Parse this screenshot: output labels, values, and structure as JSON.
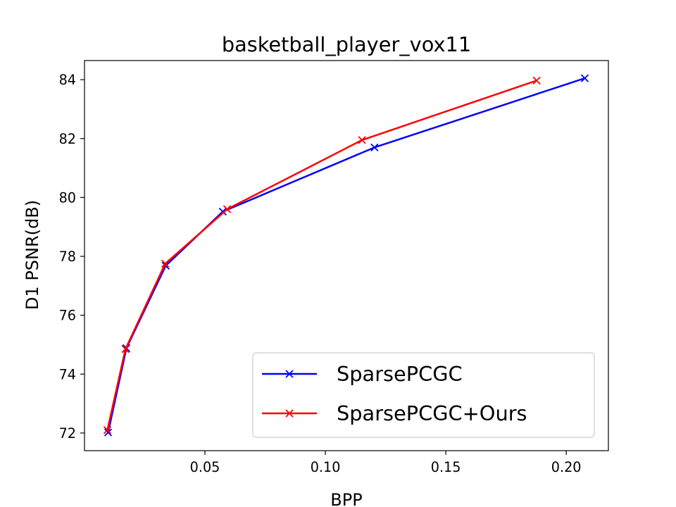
{
  "chart_data": {
    "type": "line",
    "title": "basketball_player_vox11",
    "xlabel": "BPP",
    "ylabel": "D1 PSNR(dB)",
    "xlim": [
      0.0,
      0.2175
    ],
    "ylim": [
      71.4,
      84.65
    ],
    "xticks": [
      0.05,
      0.1,
      0.15,
      0.2
    ],
    "xtick_labels": [
      "0.05",
      "0.10",
      "0.15",
      "0.20"
    ],
    "yticks": [
      72,
      74,
      76,
      78,
      80,
      82,
      84
    ],
    "ytick_labels": [
      "72",
      "74",
      "76",
      "78",
      "80",
      "82",
      "84"
    ],
    "grid": false,
    "legend_position": "lower right",
    "marker": "x",
    "series": [
      {
        "name": "SparsePCGC",
        "color": "#0000ff",
        "x": [
          0.0098,
          0.0174,
          0.0337,
          0.0574,
          0.1204,
          0.2077
        ],
        "y": [
          72.02,
          74.88,
          77.68,
          79.52,
          81.7,
          84.05
        ]
      },
      {
        "name": "SparsePCGC+Ours",
        "color": "#ff0000",
        "x": [
          0.0095,
          0.017,
          0.0335,
          0.0592,
          0.1152,
          0.1877
        ],
        "y": [
          72.1,
          74.85,
          77.75,
          79.6,
          81.95,
          83.97
        ]
      }
    ]
  }
}
